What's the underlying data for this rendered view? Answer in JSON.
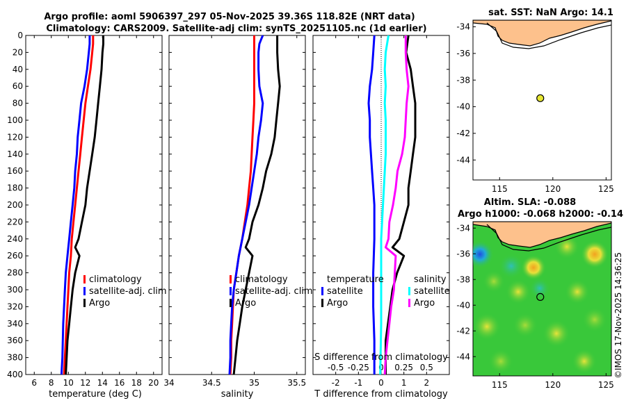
{
  "title": {
    "line1": "Argo profile: aoml 5906397_297 05-Nov-2025 39.36S 118.82E (NRT data)",
    "line2": "Climatology: CARS2009. Satellite-adj clim: synTS_20251105.nc (1d earlier)"
  },
  "credit": "©IMOS 17-Nov-2025 14:36:25",
  "colors": {
    "clim": "#ff0000",
    "sat": "#0000ff",
    "argo": "#000000",
    "sat_s": "#00ffff",
    "argo_s": "#ff00ff",
    "land": "#fdc18c"
  },
  "depth_ticks": [
    0,
    20,
    40,
    60,
    80,
    100,
    120,
    140,
    160,
    180,
    200,
    220,
    240,
    260,
    280,
    300,
    320,
    340,
    360,
    380,
    400
  ],
  "chart_data": [
    {
      "type": "line",
      "id": "temperature",
      "xlabel": "temperature (deg C)",
      "ylabel": "",
      "xlim": [
        5,
        21
      ],
      "ylim": [
        400,
        0
      ],
      "xticks": [
        6,
        8,
        10,
        12,
        14,
        16,
        18,
        20
      ],
      "legend": [
        "climatology",
        "satellite-adj. clim",
        "Argo"
      ],
      "series": [
        {
          "name": "climatology",
          "depth": [
            0,
            10,
            20,
            40,
            60,
            80,
            100,
            120,
            140,
            160,
            180,
            200,
            220,
            240,
            260,
            280,
            300,
            320,
            340,
            360,
            380,
            400
          ],
          "values": [
            12.9,
            12.9,
            12.8,
            12.6,
            12.3,
            12.0,
            11.8,
            11.6,
            11.4,
            11.2,
            11.0,
            10.8,
            10.6,
            10.4,
            10.3,
            10.1,
            10.0,
            9.9,
            9.8,
            9.7,
            9.6,
            9.5
          ]
        },
        {
          "name": "satellite-adj. clim",
          "depth": [
            0,
            10,
            20,
            40,
            60,
            80,
            100,
            120,
            140,
            160,
            180,
            200,
            220,
            240,
            260,
            280,
            300,
            320,
            340,
            360,
            380,
            400
          ],
          "values": [
            12.5,
            12.5,
            12.4,
            12.2,
            11.9,
            11.5,
            11.3,
            11.1,
            11.0,
            10.8,
            10.7,
            10.5,
            10.3,
            10.1,
            9.9,
            9.7,
            9.6,
            9.5,
            9.4,
            9.35,
            9.3,
            9.2
          ]
        },
        {
          "name": "Argo",
          "depth": [
            0,
            10,
            20,
            40,
            60,
            80,
            100,
            120,
            140,
            160,
            180,
            200,
            220,
            240,
            250,
            260,
            280,
            300,
            320,
            340,
            360,
            380,
            400
          ],
          "values": [
            14.1,
            14.1,
            14.0,
            13.9,
            13.7,
            13.5,
            13.3,
            13.1,
            12.8,
            12.5,
            12.2,
            12.0,
            11.6,
            11.2,
            10.8,
            11.3,
            10.8,
            10.5,
            10.3,
            10.1,
            9.9,
            9.8,
            9.7
          ]
        }
      ]
    },
    {
      "type": "line",
      "id": "salinity",
      "xlabel": "salinity",
      "ylabel": "",
      "xlim": [
        34,
        35.6
      ],
      "ylim": [
        400,
        0
      ],
      "xticks": [
        34,
        34.5,
        35,
        35.5
      ],
      "legend": [
        "climatology",
        "satellite-adj. clim",
        "Argo"
      ],
      "series": [
        {
          "name": "climatology",
          "depth": [
            0,
            20,
            40,
            60,
            80,
            100,
            120,
            140,
            160,
            180,
            200,
            220,
            240,
            260,
            280,
            300,
            320,
            340,
            360,
            380,
            400
          ],
          "values": [
            35.0,
            35.0,
            35.0,
            35.0,
            35.0,
            34.99,
            34.98,
            34.97,
            34.96,
            34.94,
            34.92,
            34.89,
            34.86,
            34.82,
            34.79,
            34.76,
            34.75,
            34.74,
            34.73,
            34.73,
            34.72
          ]
        },
        {
          "name": "satellite-adj. clim",
          "depth": [
            0,
            5,
            10,
            20,
            40,
            60,
            80,
            100,
            120,
            140,
            160,
            180,
            200,
            220,
            240,
            260,
            280,
            300,
            320,
            340,
            360,
            380,
            400
          ],
          "values": [
            35.1,
            35.08,
            35.06,
            35.05,
            35.05,
            35.06,
            35.1,
            35.08,
            35.05,
            35.03,
            35.0,
            34.97,
            34.94,
            34.9,
            34.86,
            34.82,
            34.79,
            34.76,
            34.74,
            34.73,
            34.72,
            34.72,
            34.71
          ]
        },
        {
          "name": "Argo",
          "depth": [
            0,
            20,
            40,
            60,
            80,
            100,
            120,
            140,
            160,
            180,
            200,
            220,
            240,
            250,
            260,
            280,
            300,
            320,
            340,
            360,
            380,
            400
          ],
          "values": [
            35.27,
            35.27,
            35.28,
            35.3,
            35.28,
            35.26,
            35.24,
            35.2,
            35.14,
            35.1,
            35.05,
            34.98,
            34.94,
            34.9,
            34.98,
            34.94,
            34.9,
            34.86,
            34.83,
            34.8,
            34.78,
            34.76
          ]
        }
      ]
    },
    {
      "type": "line",
      "id": "difference",
      "xlabel": "T difference from climatology",
      "title_inside": "S difference from climatology",
      "ylabel": "",
      "xlim": [
        -3,
        3
      ],
      "ylim": [
        400,
        0
      ],
      "xticks": [
        -2,
        -1,
        0,
        1,
        2
      ],
      "xtick_labels": [
        "-2",
        "-1",
        "0",
        "1",
        "2"
      ],
      "s_xticks": [
        -0.5,
        -0.25,
        0,
        0.25,
        0.5
      ],
      "s_xtick_labels": [
        "-0.5",
        "-0.25",
        "0",
        "0.25",
        "0.5"
      ],
      "s_scale": 4,
      "legend_temperature": {
        "title": "temperature",
        "items": [
          "satellite",
          "Argo"
        ]
      },
      "legend_salinity": {
        "title": "salinity",
        "items": [
          "satellite",
          "Argo"
        ]
      },
      "series": [
        {
          "name": "T satellite",
          "depth": [
            0,
            20,
            40,
            60,
            80,
            100,
            120,
            140,
            160,
            180,
            200,
            240,
            280,
            320,
            360,
            400
          ],
          "values": [
            -0.3,
            -0.35,
            -0.4,
            -0.5,
            -0.55,
            -0.5,
            -0.5,
            -0.45,
            -0.4,
            -0.35,
            -0.3,
            -0.3,
            -0.35,
            -0.35,
            -0.3,
            -0.3
          ]
        },
        {
          "name": "T Argo",
          "depth": [
            0,
            20,
            40,
            60,
            80,
            100,
            120,
            140,
            160,
            180,
            200,
            220,
            240,
            250,
            260,
            280,
            300,
            320,
            340,
            360,
            380,
            400
          ],
          "values": [
            1.2,
            1.1,
            1.3,
            1.4,
            1.5,
            1.5,
            1.5,
            1.4,
            1.3,
            1.2,
            1.2,
            1.0,
            0.8,
            0.5,
            1.0,
            0.7,
            0.5,
            0.4,
            0.3,
            0.2,
            0.2,
            0.2
          ]
        },
        {
          "name": "S satellite",
          "depth": [
            0,
            20,
            40,
            60,
            80,
            100,
            120,
            140,
            160,
            180,
            200,
            220,
            240,
            260,
            280,
            300,
            340,
            400
          ],
          "values": [
            0.08,
            0.05,
            0.04,
            0.05,
            0.04,
            0.05,
            0.05,
            0.05,
            0.04,
            0.03,
            0.02,
            0.01,
            0.0,
            0.0,
            0.0,
            0.0,
            0.0,
            -0.01
          ]
        },
        {
          "name": "S Argo",
          "depth": [
            0,
            20,
            40,
            60,
            80,
            100,
            120,
            140,
            160,
            180,
            200,
            220,
            240,
            250,
            260,
            280,
            300,
            320,
            340,
            360,
            380,
            400
          ],
          "values": [
            0.27,
            0.27,
            0.28,
            0.3,
            0.28,
            0.27,
            0.26,
            0.23,
            0.18,
            0.16,
            0.13,
            0.09,
            0.08,
            0.05,
            0.16,
            0.15,
            0.14,
            0.11,
            0.09,
            0.07,
            0.05,
            0.04
          ]
        }
      ]
    }
  ],
  "maps": {
    "sst": {
      "title": "sat. SST: NaN Argo: 14.1",
      "lon_range": [
        112.5,
        125.5
      ],
      "lat_range": [
        -45.5,
        -33.5
      ],
      "xticks": [
        115,
        120,
        125
      ],
      "yticks": [
        -34,
        -36,
        -38,
        -40,
        -42,
        -44
      ],
      "float_lon": 118.82,
      "float_lat": -39.36,
      "float_color": "#e6e632"
    },
    "sla": {
      "title_line1": "Altim. SLA: -0.088",
      "title_line2": "Argo h1000: -0.068 h2000: -0.14",
      "lon_range": [
        112.5,
        125.5
      ],
      "lat_range": [
        -45.5,
        -33.5
      ],
      "xticks": [
        115,
        120,
        125
      ],
      "yticks": [
        -34,
        -36,
        -38,
        -40,
        -42,
        -44
      ],
      "float_lon": 118.82,
      "float_lat": -39.36,
      "background": "#39c83a"
    }
  }
}
